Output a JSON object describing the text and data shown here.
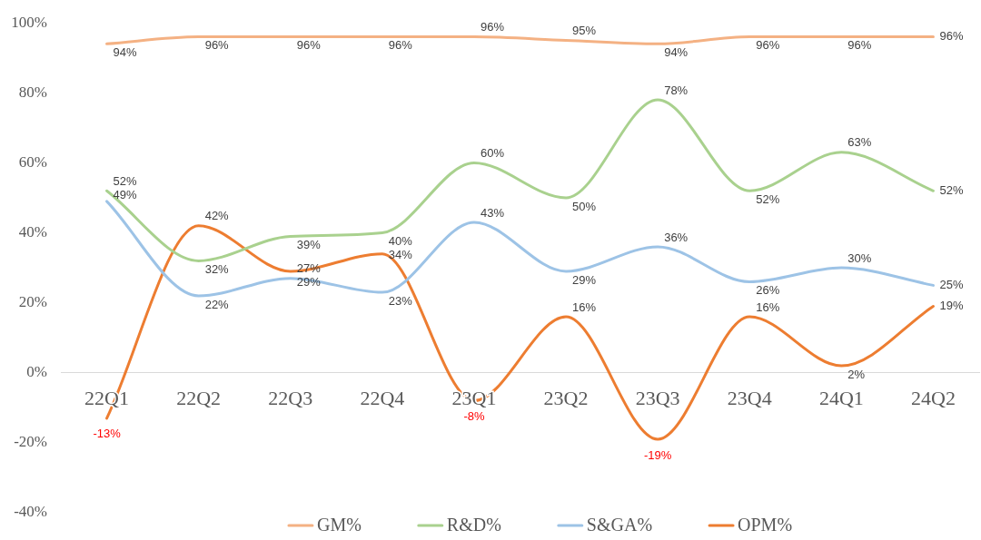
{
  "chart_data": {
    "type": "line",
    "categories": [
      "22Q1",
      "22Q2",
      "22Q3",
      "22Q4",
      "23Q1",
      "23Q2",
      "23Q3",
      "23Q4",
      "24Q1",
      "24Q2"
    ],
    "ylim": [
      -40,
      100
    ],
    "yticks": [
      {
        "value": -40,
        "label": "-40%"
      },
      {
        "value": -20,
        "label": "-20%"
      },
      {
        "value": 0,
        "label": "0%"
      },
      {
        "value": 20,
        "label": "20%"
      },
      {
        "value": 40,
        "label": "40%"
      },
      {
        "value": 60,
        "label": "60%"
      },
      {
        "value": 80,
        "label": "80%"
      },
      {
        "value": 100,
        "label": "100%"
      }
    ],
    "legend": "bottom",
    "series": [
      {
        "name": "GM%",
        "color": "#f4b183",
        "values": [
          94,
          96,
          96,
          96,
          96,
          95,
          94,
          96,
          96,
          96
        ],
        "value_labels": [
          "94%",
          "96%",
          "96%",
          "96%",
          "96%",
          "95%",
          "94%",
          "96%",
          "96%",
          "96%"
        ]
      },
      {
        "name": "R&D%",
        "color": "#a9d18e",
        "values": [
          52,
          32,
          39,
          40,
          60,
          50,
          78,
          52,
          63,
          52
        ],
        "value_labels": [
          "52%",
          "32%",
          "39%",
          "40%",
          "60%",
          "50%",
          "78%",
          "52%",
          "63%",
          "52%"
        ]
      },
      {
        "name": "S&GA%",
        "color": "#9dc3e6",
        "values": [
          49,
          22,
          27,
          23,
          43,
          29,
          36,
          26,
          30,
          25
        ],
        "value_labels": [
          "49%",
          "22%",
          "27%",
          "23%",
          "43%",
          "29%",
          "36%",
          "26%",
          "30%",
          "25%"
        ]
      },
      {
        "name": "OPM%",
        "color": "#ed7d31",
        "values": [
          -13,
          42,
          29,
          34,
          -8,
          16,
          -19,
          16,
          2,
          19
        ],
        "value_labels": [
          "-13%",
          "42%",
          "29%",
          "34%",
          "-8%",
          "16%",
          "-19%",
          "16%",
          "2%",
          "19%"
        ]
      }
    ]
  }
}
